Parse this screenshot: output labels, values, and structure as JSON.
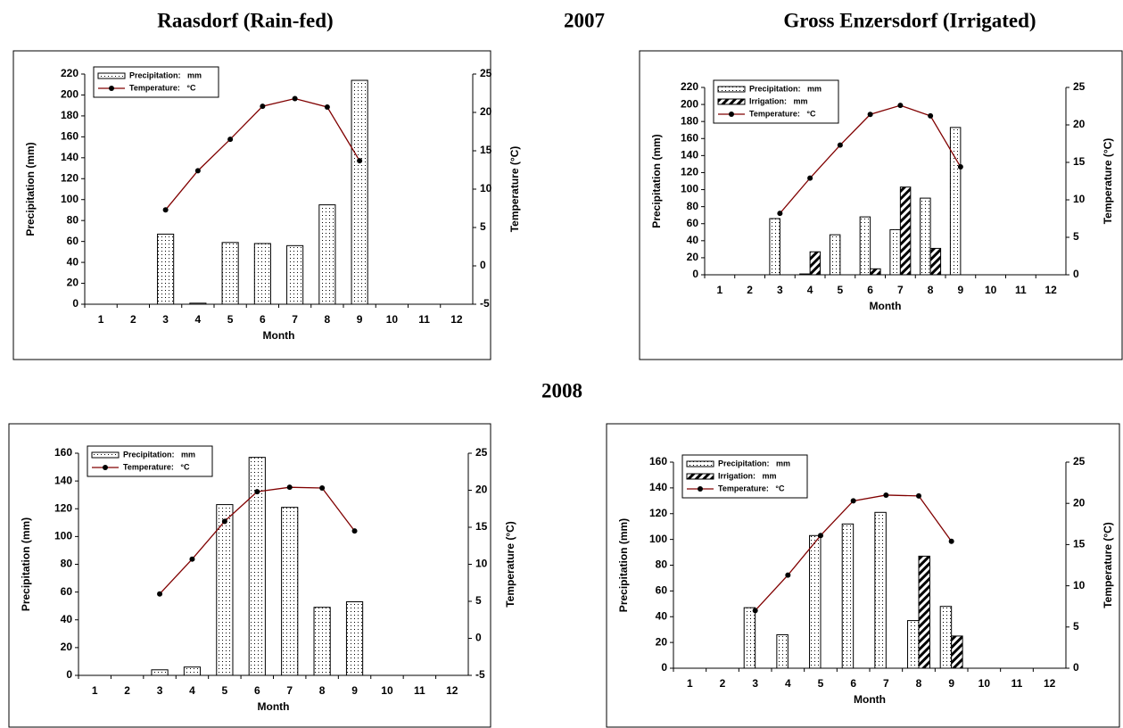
{
  "headings": {
    "left": "Raasdorf (Rain-fed)",
    "year_2007": "2007",
    "right": "Gross Enzersdorf (Irrigated)",
    "year_2008": "2008"
  },
  "chart_data": [
    {
      "type": "combo",
      "legend": "upper left",
      "x_label": "Month",
      "y_label": "Precipitation (mm)",
      "y2_label": "Temperature (°C)",
      "categories": [
        "1",
        "2",
        "3",
        "4",
        "5",
        "6",
        "7",
        "8",
        "9",
        "10",
        "11",
        "12"
      ],
      "ylim": [
        0,
        220
      ],
      "yticks": [
        0,
        20,
        40,
        60,
        80,
        100,
        120,
        140,
        160,
        180,
        200,
        220
      ],
      "y2lim": [
        -5,
        25
      ],
      "y2ticks": [
        -5,
        0,
        5,
        10,
        15,
        20,
        25
      ],
      "series": [
        {
          "name": "Precipitation:   mm",
          "kind": "bar",
          "pattern": "dots",
          "color": "#000000",
          "values": [
            null,
            null,
            67,
            1,
            59,
            58,
            56,
            95,
            214,
            null,
            null,
            null
          ]
        },
        {
          "name": "Temperature:   °C",
          "kind": "line",
          "axis": "y2",
          "color": "#800000",
          "marker_color": "#000000",
          "values": [
            null,
            null,
            7.3,
            12.4,
            16.5,
            20.8,
            21.8,
            20.7,
            13.7,
            null,
            null,
            null
          ]
        }
      ]
    },
    {
      "type": "combo",
      "legend": "upper left",
      "x_label": "Month",
      "y_label": "Precipitation (mm)",
      "y2_label": "Temperature (°C)",
      "categories": [
        "1",
        "2",
        "3",
        "4",
        "5",
        "6",
        "7",
        "8",
        "9",
        "10",
        "11",
        "12"
      ],
      "ylim": [
        0,
        220
      ],
      "yticks": [
        0,
        20,
        40,
        60,
        80,
        100,
        120,
        140,
        160,
        180,
        200,
        220
      ],
      "y2lim": [
        0,
        25
      ],
      "y2ticks": [
        0,
        5,
        10,
        15,
        20,
        25
      ],
      "series": [
        {
          "name": "Precipitation:   mm",
          "kind": "bar",
          "pattern": "dots",
          "color": "#000000",
          "values": [
            null,
            null,
            66,
            1,
            47,
            68,
            53,
            90,
            173,
            null,
            null,
            null
          ]
        },
        {
          "name": "Irrigation:   mm",
          "kind": "bar",
          "pattern": "hatch",
          "color": "#000000",
          "values": [
            null,
            null,
            null,
            27,
            null,
            7,
            103,
            31,
            null,
            null,
            null,
            null
          ]
        },
        {
          "name": "Temperature:   °C",
          "kind": "line",
          "axis": "y2",
          "color": "#800000",
          "marker_color": "#000000",
          "values": [
            null,
            null,
            8.2,
            12.9,
            17.3,
            21.4,
            22.6,
            21.2,
            14.4,
            null,
            null,
            null
          ]
        }
      ]
    },
    {
      "type": "combo",
      "legend": "upper left",
      "x_label": "Month",
      "y_label": "Precipitation (mm)",
      "y2_label": "Temperature (°C)",
      "categories": [
        "1",
        "2",
        "3",
        "4",
        "5",
        "6",
        "7",
        "8",
        "9",
        "10",
        "11",
        "12"
      ],
      "ylim": [
        0,
        160
      ],
      "yticks": [
        0,
        20,
        40,
        60,
        80,
        100,
        120,
        140,
        160
      ],
      "y2lim": [
        -5,
        25
      ],
      "y2ticks": [
        -5,
        0,
        5,
        10,
        15,
        20,
        25
      ],
      "series": [
        {
          "name": "Precipitation:   mm",
          "kind": "bar",
          "pattern": "dots",
          "color": "#000000",
          "values": [
            null,
            null,
            4,
            6,
            123,
            157,
            121,
            49,
            53,
            null,
            null,
            null
          ]
        },
        {
          "name": "Temperature:   °C",
          "kind": "line",
          "axis": "y2",
          "color": "#800000",
          "marker_color": "#000000",
          "values": [
            null,
            null,
            6.0,
            10.7,
            15.8,
            19.8,
            20.4,
            20.3,
            14.5,
            null,
            null,
            null
          ]
        }
      ]
    },
    {
      "type": "combo",
      "legend": "upper left",
      "x_label": "Month",
      "y_label": "Precipitation (mm)",
      "y2_label": "Temperature (°C)",
      "categories": [
        "1",
        "2",
        "3",
        "4",
        "5",
        "6",
        "7",
        "8",
        "9",
        "10",
        "11",
        "12"
      ],
      "ylim": [
        0,
        160
      ],
      "yticks": [
        0,
        20,
        40,
        60,
        80,
        100,
        120,
        140,
        160
      ],
      "y2lim": [
        0,
        25
      ],
      "y2ticks": [
        0,
        5,
        10,
        15,
        20,
        25
      ],
      "series": [
        {
          "name": "Precipitation:   mm",
          "kind": "bar",
          "pattern": "dots",
          "color": "#000000",
          "values": [
            null,
            null,
            47,
            26,
            103,
            112,
            121,
            37,
            48,
            null,
            null,
            null
          ]
        },
        {
          "name": "Irrigation:   mm",
          "kind": "bar",
          "pattern": "hatch",
          "color": "#000000",
          "values": [
            null,
            null,
            null,
            null,
            null,
            null,
            null,
            87,
            25,
            null,
            null,
            null
          ]
        },
        {
          "name": "Temperature:   °C",
          "kind": "line",
          "axis": "y2",
          "color": "#800000",
          "marker_color": "#000000",
          "values": [
            null,
            null,
            7.0,
            11.3,
            16.1,
            20.3,
            21.0,
            20.9,
            15.4,
            null,
            null,
            null
          ]
        }
      ]
    }
  ]
}
